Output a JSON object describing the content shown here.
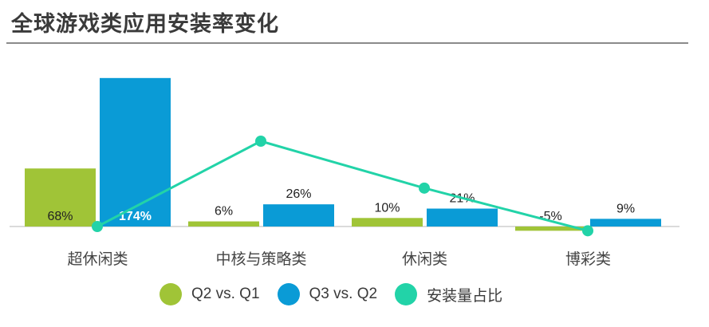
{
  "title": "全球游戏类应用安装率变化",
  "chart_data": {
    "type": "bar",
    "categories": [
      "超休闲类",
      "中核与策略类",
      "休闲类",
      "博彩类"
    ],
    "series": [
      {
        "name": "Q2 vs. Q1",
        "values": [
          68,
          6,
          10,
          -5
        ],
        "color": "#a0c437",
        "labels": [
          "68%",
          "6%",
          "10%",
          "-5%"
        ]
      },
      {
        "name": "Q3 vs. Q2",
        "values": [
          174,
          26,
          21,
          9
        ],
        "color": "#0a9bd6",
        "labels": [
          "174%",
          "26%",
          "21%",
          "9%"
        ]
      }
    ],
    "line_series": {
      "name": "安装量占比",
      "color": "#22d3a8",
      "values": [
        0,
        100,
        45,
        -5
      ]
    },
    "ylim": [
      -10,
      190
    ],
    "legend": "bottom"
  }
}
